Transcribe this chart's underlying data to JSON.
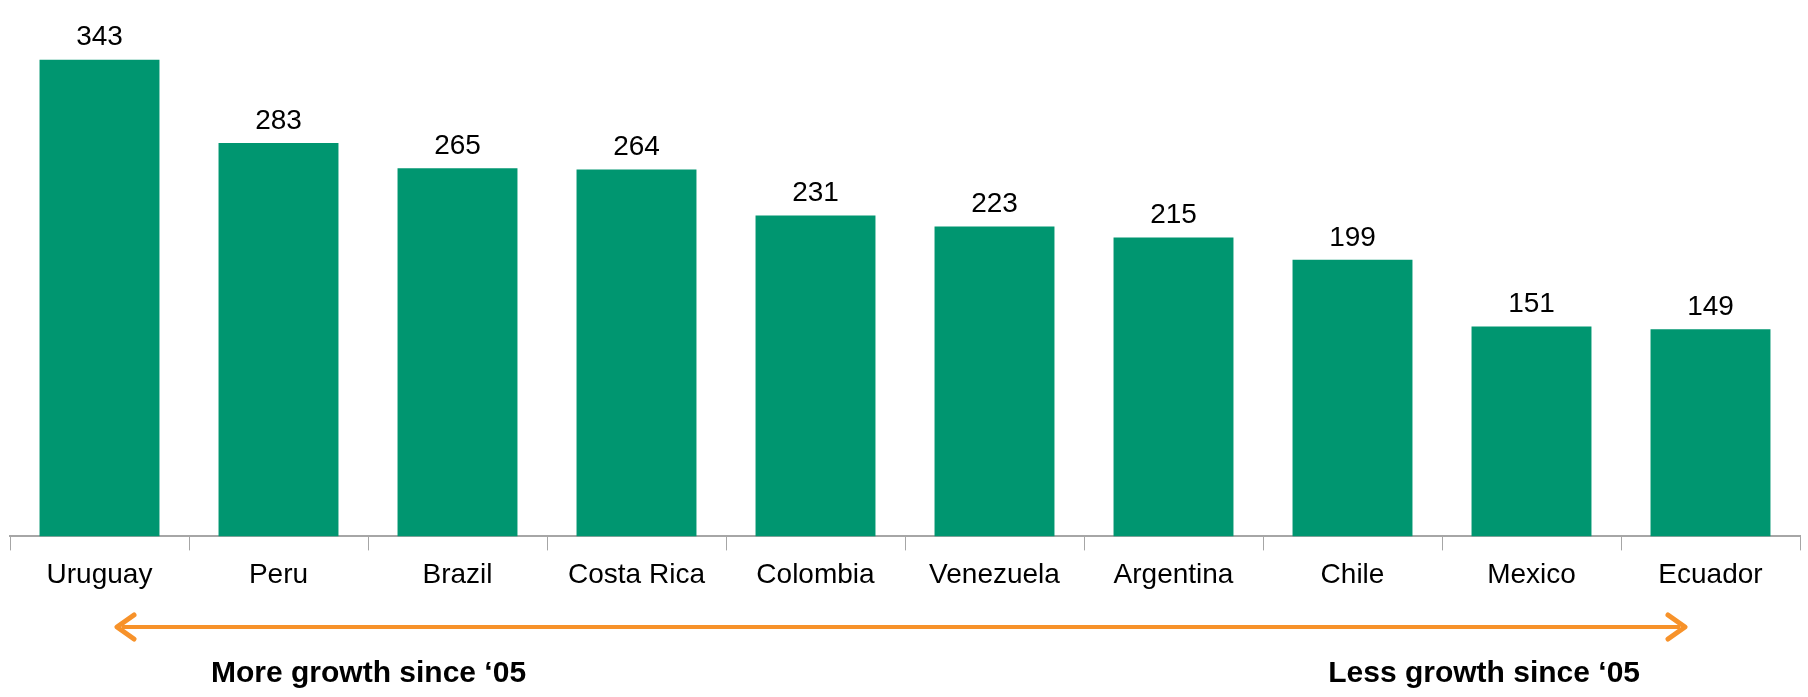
{
  "chart_data": {
    "type": "bar",
    "categories": [
      "Uruguay",
      "Peru",
      "Brazil",
      "Costa Rica",
      "Colombia",
      "Venezuela",
      "Argentina",
      "Chile",
      "Mexico",
      "Ecuador"
    ],
    "values": [
      343,
      283,
      265,
      264,
      231,
      223,
      215,
      199,
      151,
      149
    ],
    "color": "#009670",
    "data_labels": true,
    "grid": false,
    "legend": false,
    "tick_labels": "x",
    "annotations": [
      "More growth since ‘05",
      "Less growth since ‘05"
    ]
  }
}
